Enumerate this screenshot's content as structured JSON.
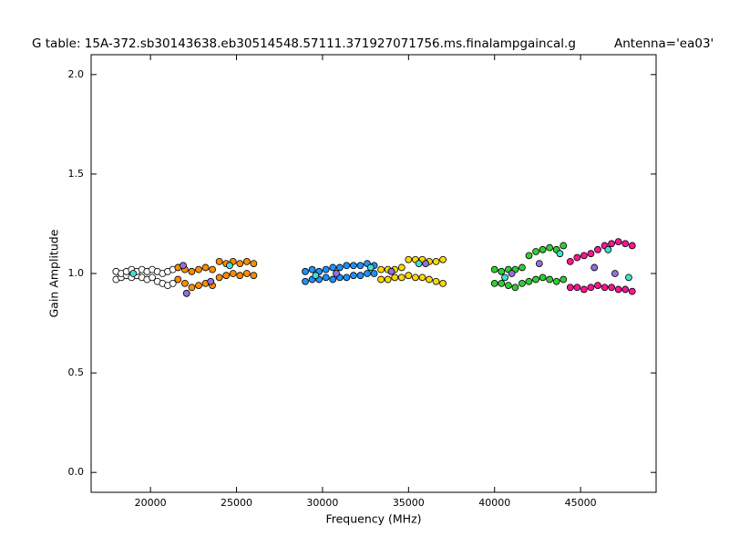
{
  "chart_data": {
    "type": "scatter",
    "title": "G table: 15A-372.sb30143638.eb30514548.57111.371927071756.ms.finalampgaincal.g",
    "subtitle": "Antenna='ea03'",
    "x_label": "Frequency (MHz)",
    "y_label": "Gain Amplitude",
    "xlim": [
      16550,
      49390
    ],
    "ylim": [
      -0.1,
      2.1
    ],
    "xticks": [
      20000,
      25000,
      30000,
      35000,
      40000,
      45000
    ],
    "yticks": [
      {
        "value": 0,
        "label": "0.0"
      },
      0.5,
      {
        "value": 1,
        "label": "1.0"
      },
      1.5,
      {
        "value": 2,
        "label": "2.0"
      }
    ],
    "grid": false,
    "series": [
      {
        "color": "#ffffff",
        "x": [
          18000,
          18000,
          18300,
          18300,
          18600,
          18600,
          18900,
          18900,
          19200,
          19200,
          19500,
          19500,
          19800,
          19800,
          20100,
          20100,
          20400,
          20400,
          20700,
          20700,
          21000,
          21000,
          21300,
          21300
        ],
        "values": [
          0.97,
          1.01,
          0.98,
          1.0,
          0.99,
          1.01,
          0.98,
          1.02,
          0.99,
          1.01,
          0.98,
          1.02,
          0.97,
          1.01,
          0.98,
          1.02,
          0.96,
          1.01,
          0.95,
          1.0,
          0.94,
          1.01,
          0.95,
          1.02
        ]
      },
      {
        "color": "#ff8c00",
        "x": [
          21600,
          21600,
          22000,
          22000,
          22400,
          22400,
          22800,
          22800,
          23200,
          23200,
          23600,
          23600,
          24000,
          24000,
          24400,
          24400,
          24800,
          24800,
          25200,
          25200,
          25600,
          25600,
          26000,
          26000
        ],
        "values": [
          0.97,
          1.03,
          0.95,
          1.02,
          0.93,
          1.01,
          0.94,
          1.02,
          0.95,
          1.03,
          0.94,
          1.02,
          0.98,
          1.06,
          0.99,
          1.05,
          1.0,
          1.06,
          0.99,
          1.05,
          1.0,
          1.06,
          0.99,
          1.05
        ]
      },
      {
        "color": "#1e90ff",
        "x": [
          29000,
          29000,
          29400,
          29400,
          29800,
          29800,
          30200,
          30200,
          30600,
          30600,
          31000,
          31000,
          31400,
          31400,
          31800,
          31800,
          32200,
          32200,
          32600,
          32600,
          33000,
          33000
        ],
        "values": [
          0.96,
          1.01,
          0.97,
          1.02,
          0.97,
          1.01,
          0.98,
          1.02,
          0.97,
          1.03,
          0.98,
          1.03,
          0.98,
          1.04,
          0.99,
          1.04,
          0.99,
          1.04,
          1.0,
          1.05,
          1.0,
          1.04
        ]
      },
      {
        "color": "#ffd700",
        "x": [
          33400,
          33400,
          33800,
          33800,
          34200,
          34200,
          34600,
          34600,
          35000,
          35000,
          35400,
          35400,
          35800,
          35800,
          36200,
          36200,
          36600,
          36600,
          37000,
          37000
        ],
        "values": [
          0.97,
          1.02,
          0.97,
          1.02,
          0.98,
          1.02,
          0.98,
          1.03,
          0.99,
          1.07,
          0.98,
          1.07,
          0.98,
          1.07,
          0.97,
          1.06,
          0.96,
          1.06,
          0.95,
          1.07
        ]
      },
      {
        "color": "#32cd32",
        "x": [
          40000,
          40000,
          40400,
          40400,
          40800,
          40800,
          41200,
          41200,
          41600,
          41600,
          42000,
          42000,
          42400,
          42400,
          42800,
          42800,
          43200,
          43200,
          43600,
          43600,
          44000,
          44000
        ],
        "values": [
          0.95,
          1.02,
          0.95,
          1.01,
          0.94,
          1.02,
          0.93,
          1.02,
          0.95,
          1.03,
          0.96,
          1.09,
          0.97,
          1.11,
          0.98,
          1.12,
          0.97,
          1.13,
          0.96,
          1.12,
          0.97,
          1.14
        ]
      },
      {
        "color": "#ff1493",
        "x": [
          44400,
          44400,
          44800,
          44800,
          45200,
          45200,
          45600,
          45600,
          46000,
          46000,
          46400,
          46400,
          46800,
          46800,
          47200,
          47200,
          47600,
          47600,
          48000,
          48000
        ],
        "values": [
          0.93,
          1.06,
          0.93,
          1.08,
          0.92,
          1.09,
          0.93,
          1.1,
          0.94,
          1.12,
          0.93,
          1.14,
          0.93,
          1.15,
          0.92,
          1.16,
          0.92,
          1.15,
          0.91,
          1.14
        ]
      },
      {
        "color": "#9370db",
        "x": [
          21900,
          22100,
          23500,
          30800,
          34000,
          36000,
          41000,
          42600,
          45800,
          47000
        ],
        "values": [
          1.04,
          0.9,
          0.96,
          1.0,
          1.01,
          1.05,
          1.0,
          1.05,
          1.03,
          1.0
        ]
      },
      {
        "color": "#40e0d0",
        "x": [
          19000,
          24600,
          29600,
          32800,
          35600,
          40600,
          43800,
          46600,
          47800
        ],
        "values": [
          1.0,
          1.04,
          0.99,
          1.03,
          1.05,
          0.98,
          1.1,
          1.12,
          0.98
        ]
      }
    ]
  }
}
